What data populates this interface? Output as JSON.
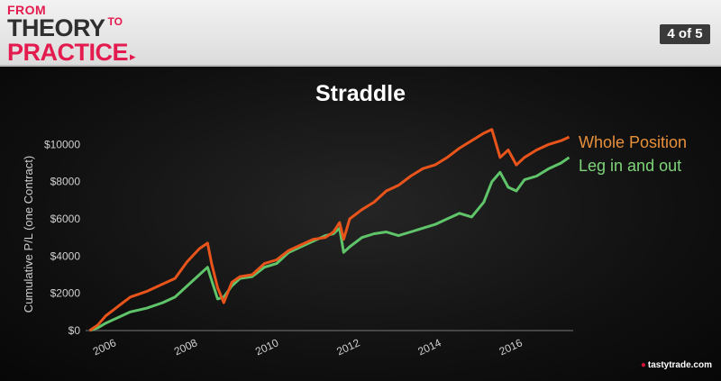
{
  "header": {
    "logo_from": "FROM",
    "logo_theory": "THEORY",
    "logo_to": "TO",
    "logo_practice": "PRACTICE",
    "page_indicator": "4 of 5"
  },
  "watermark": "tastytrade.com",
  "colors": {
    "whole_position": "#e8541a",
    "leg_in_out": "#5fc46a",
    "whole_position_label": "#e8903a",
    "leg_in_out_label": "#7fd47a",
    "accent": "#e31b4f"
  },
  "chart_data": {
    "type": "line",
    "title": "Straddle",
    "ylabel": "Cumulative P/L (one Contract)",
    "xlabel": "",
    "xlim": [
      2005.5,
      2017.5
    ],
    "ylim": [
      0,
      10500
    ],
    "x_ticks": [
      2006,
      2008,
      2010,
      2012,
      2014,
      2016
    ],
    "x_tick_labels": [
      "2006",
      "2008",
      "2010",
      "2012",
      "2014",
      "2016"
    ],
    "y_ticks": [
      0,
      2000,
      4000,
      6000,
      8000,
      10000
    ],
    "y_tick_labels": [
      "$0",
      "$2000",
      "$4000",
      "$6000",
      "$8000",
      "$10000"
    ],
    "legend_position": "top-right",
    "grid": false,
    "series": [
      {
        "name": "Whole Position",
        "x": [
          2005.6,
          2005.8,
          2006.0,
          2006.3,
          2006.6,
          2007.0,
          2007.4,
          2007.7,
          2008.0,
          2008.3,
          2008.5,
          2008.6,
          2008.75,
          2008.9,
          2009.1,
          2009.3,
          2009.6,
          2009.9,
          2010.2,
          2010.5,
          2010.8,
          2011.1,
          2011.4,
          2011.6,
          2011.75,
          2011.85,
          2012.0,
          2012.3,
          2012.6,
          2012.9,
          2013.2,
          2013.5,
          2013.8,
          2014.1,
          2014.4,
          2014.7,
          2015.0,
          2015.3,
          2015.5,
          2015.7,
          2015.9,
          2016.1,
          2016.3,
          2016.6,
          2016.9,
          2017.2,
          2017.4
        ],
        "y": [
          0,
          300,
          800,
          1300,
          1800,
          2100,
          2500,
          2800,
          3700,
          4400,
          4700,
          3600,
          2300,
          1500,
          2600,
          2900,
          3000,
          3600,
          3800,
          4300,
          4600,
          4900,
          5000,
          5300,
          5800,
          4900,
          6000,
          6500,
          6900,
          7500,
          7800,
          8300,
          8700,
          8900,
          9300,
          9800,
          10200,
          10600,
          10800,
          9300,
          9700,
          8900,
          9300,
          9700,
          10000,
          10200,
          10400
        ]
      },
      {
        "name": "Leg in and out",
        "x": [
          2005.6,
          2005.8,
          2006.0,
          2006.3,
          2006.6,
          2007.0,
          2007.4,
          2007.7,
          2008.0,
          2008.3,
          2008.5,
          2008.6,
          2008.75,
          2008.9,
          2009.1,
          2009.3,
          2009.6,
          2009.9,
          2010.2,
          2010.5,
          2010.8,
          2011.1,
          2011.4,
          2011.6,
          2011.75,
          2011.85,
          2012.0,
          2012.3,
          2012.6,
          2012.9,
          2013.2,
          2013.5,
          2013.8,
          2014.1,
          2014.4,
          2014.7,
          2015.0,
          2015.3,
          2015.5,
          2015.7,
          2015.9,
          2016.1,
          2016.3,
          2016.6,
          2016.9,
          2017.2,
          2017.4
        ],
        "y": [
          0,
          150,
          400,
          700,
          1000,
          1200,
          1500,
          1800,
          2400,
          3000,
          3400,
          2700,
          1700,
          1800,
          2400,
          2800,
          2900,
          3400,
          3600,
          4200,
          4500,
          4800,
          5100,
          5200,
          5500,
          4200,
          4500,
          5000,
          5200,
          5300,
          5100,
          5300,
          5500,
          5700,
          6000,
          6300,
          6100,
          6900,
          8000,
          8500,
          7700,
          7500,
          8100,
          8300,
          8700,
          9000,
          9300
        ]
      }
    ]
  }
}
